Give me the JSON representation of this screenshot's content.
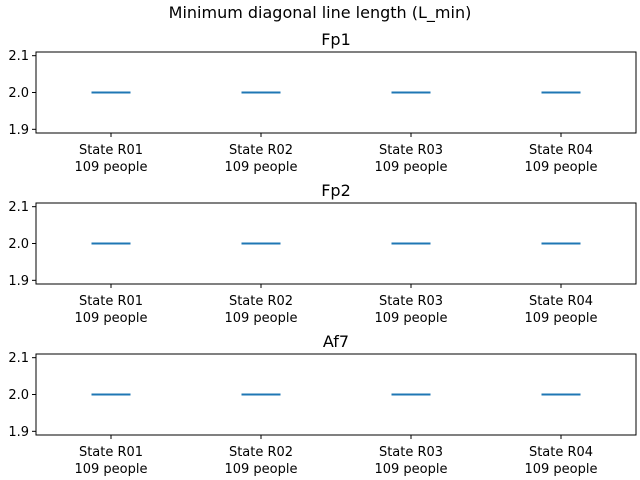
{
  "figure": {
    "title": "Minimum diagonal line length (L_min)"
  },
  "style": {
    "line_color": "#1f77b4",
    "axes_color": "#000000",
    "background": "#ffffff"
  },
  "chart_data": [
    {
      "type": "box",
      "title": "Fp1",
      "categories": [
        "State R01\n109 people",
        "State R02\n109 people",
        "State R03\n109 people",
        "State R04\n109 people"
      ],
      "values": [
        2.0,
        2.0,
        2.0,
        2.0
      ],
      "ylim": [
        1.89,
        2.11
      ],
      "yticks": [
        1.9,
        2.0,
        2.1
      ],
      "ytick_labels": [
        "1.9",
        "2.0",
        "2.1"
      ],
      "xlabel": "",
      "ylabel": "",
      "grid": false
    },
    {
      "type": "box",
      "title": "Fp2",
      "categories": [
        "State R01\n109 people",
        "State R02\n109 people",
        "State R03\n109 people",
        "State R04\n109 people"
      ],
      "values": [
        2.0,
        2.0,
        2.0,
        2.0
      ],
      "ylim": [
        1.89,
        2.11
      ],
      "yticks": [
        1.9,
        2.0,
        2.1
      ],
      "ytick_labels": [
        "1.9",
        "2.0",
        "2.1"
      ],
      "xlabel": "",
      "ylabel": "",
      "grid": false
    },
    {
      "type": "box",
      "title": "Af7",
      "categories": [
        "State R01\n109 people",
        "State R02\n109 people",
        "State R03\n109 people",
        "State R04\n109 people"
      ],
      "values": [
        2.0,
        2.0,
        2.0,
        2.0
      ],
      "ylim": [
        1.89,
        2.11
      ],
      "yticks": [
        1.9,
        2.0,
        2.1
      ],
      "ytick_labels": [
        "1.9",
        "2.0",
        "2.1"
      ],
      "xlabel": "",
      "ylabel": "",
      "grid": false
    }
  ]
}
